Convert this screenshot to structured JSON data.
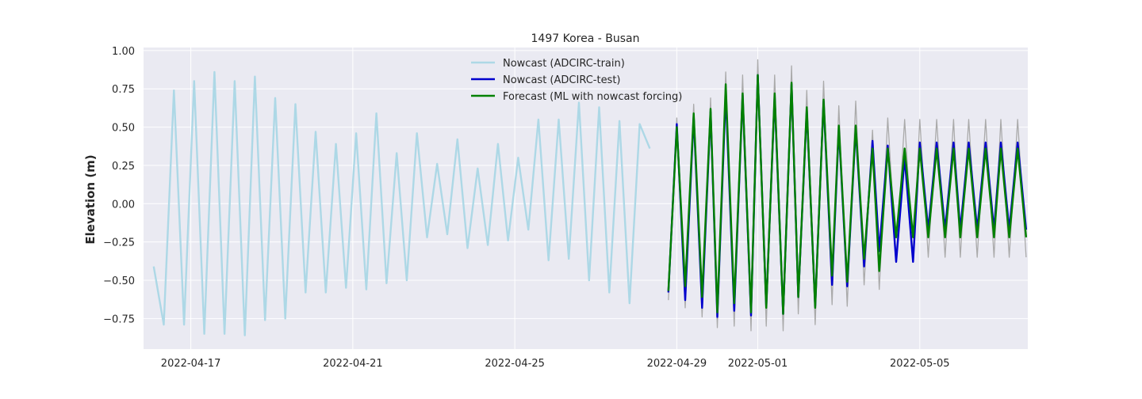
{
  "chart_data": {
    "type": "line",
    "title": "1497 Korea - Busan",
    "xlabel": "",
    "ylabel": "Elevation (m)",
    "x_ticks": [
      "2022-04-17",
      "2022-04-21",
      "2022-04-25",
      "2022-04-29",
      "2022-05-01",
      "2022-05-05"
    ],
    "y_ticks": [
      "1.00",
      "0.75",
      "0.50",
      "0.25",
      "0.00",
      "−0.25",
      "−0.50",
      "−0.75"
    ],
    "xlim": [
      "2022-04-15T20:00",
      "2022-05-07T16:00"
    ],
    "ylim": [
      -0.95,
      1.02
    ],
    "grid": true,
    "legend_position": "top-center",
    "reference_series": {
      "color": "#aaaaaa",
      "x": [
        "2022-04-28T19:00",
        "2022-04-29T00:00",
        "2022-04-29T05:00",
        "2022-04-29T10:00",
        "2022-04-29T15:00",
        "2022-04-29T20:00",
        "2022-04-30T00:00",
        "2022-04-30T05:00",
        "2022-04-30T10:00",
        "2022-04-30T15:00",
        "2022-04-30T20:00",
        "2022-05-01T00:00",
        "2022-05-01T05:00",
        "2022-05-01T10:00",
        "2022-05-01T15:00",
        "2022-05-01T20:00",
        "2022-05-02T00:00",
        "2022-05-02T05:00",
        "2022-05-02T10:00",
        "2022-05-02T15:00",
        "2022-05-02T20:00",
        "2022-05-03T00:00",
        "2022-05-03T05:00",
        "2022-05-03T10:00",
        "2022-05-03T15:00",
        "2022-05-03T20:00",
        "2022-05-04T00:00",
        "2022-05-04T05:00",
        "2022-05-04T10:00",
        "2022-05-04T15:00",
        "2022-05-04T20:00",
        "2022-05-05T00:00",
        "2022-05-05T05:00",
        "2022-05-05T10:00",
        "2022-05-05T15:00",
        "2022-05-05T20:00",
        "2022-05-06T00:00",
        "2022-05-06T05:00",
        "2022-05-06T10:00",
        "2022-05-06T15:00",
        "2022-05-06T20:00",
        "2022-05-07T00:00",
        "2022-05-07T05:00",
        "2022-05-07T10:00",
        "2022-05-07T15:00"
      ],
      "y": [
        -0.63,
        0.56,
        -0.68,
        0.65,
        -0.74,
        0.69,
        -0.81,
        0.86,
        -0.8,
        0.84,
        -0.83,
        0.94,
        -0.8,
        0.84,
        -0.83,
        0.9,
        -0.72,
        0.74,
        -0.79,
        0.8,
        -0.66,
        0.64,
        -0.67,
        0.67,
        -0.53,
        0.48,
        -0.56,
        0.56,
        -0.36,
        0.55,
        -0.36,
        0.55,
        -0.35,
        0.55,
        -0.35,
        0.55,
        -0.35,
        0.55,
        -0.35,
        0.55,
        -0.35,
        0.55,
        -0.35,
        0.55,
        -0.35
      ]
    },
    "series": [
      {
        "name": "Nowcast (ADCIRC-train)",
        "color": "#add8e6",
        "x": [
          "2022-04-16T02:00",
          "2022-04-16T08:00",
          "2022-04-16T14:00",
          "2022-04-16T20:00",
          "2022-04-17T02:00",
          "2022-04-17T08:00",
          "2022-04-17T14:00",
          "2022-04-17T20:00",
          "2022-04-18T02:00",
          "2022-04-18T08:00",
          "2022-04-18T14:00",
          "2022-04-18T20:00",
          "2022-04-19T02:00",
          "2022-04-19T08:00",
          "2022-04-19T14:00",
          "2022-04-19T20:00",
          "2022-04-20T02:00",
          "2022-04-20T08:00",
          "2022-04-20T14:00",
          "2022-04-20T20:00",
          "2022-04-21T02:00",
          "2022-04-21T08:00",
          "2022-04-21T14:00",
          "2022-04-21T20:00",
          "2022-04-22T02:00",
          "2022-04-22T08:00",
          "2022-04-22T14:00",
          "2022-04-22T20:00",
          "2022-04-23T02:00",
          "2022-04-23T08:00",
          "2022-04-23T14:00",
          "2022-04-23T20:00",
          "2022-04-24T02:00",
          "2022-04-24T08:00",
          "2022-04-24T14:00",
          "2022-04-24T20:00",
          "2022-04-25T02:00",
          "2022-04-25T08:00",
          "2022-04-25T14:00",
          "2022-04-25T20:00",
          "2022-04-26T02:00",
          "2022-04-26T08:00",
          "2022-04-26T14:00",
          "2022-04-26T20:00",
          "2022-04-27T02:00",
          "2022-04-27T08:00",
          "2022-04-27T14:00",
          "2022-04-27T20:00",
          "2022-04-28T02:00",
          "2022-04-28T08:00"
        ],
        "y": [
          -0.41,
          -0.79,
          0.74,
          -0.79,
          0.8,
          -0.85,
          0.86,
          -0.85,
          0.8,
          -0.86,
          0.83,
          -0.76,
          0.69,
          -0.75,
          0.65,
          -0.58,
          0.47,
          -0.58,
          0.39,
          -0.55,
          0.46,
          -0.56,
          0.59,
          -0.52,
          0.33,
          -0.5,
          0.46,
          -0.22,
          0.26,
          -0.2,
          0.42,
          -0.29,
          0.23,
          -0.27,
          0.39,
          -0.24,
          0.3,
          -0.17,
          0.55,
          -0.37,
          0.55,
          -0.36,
          0.66,
          -0.5,
          0.63,
          -0.58,
          0.54,
          -0.65,
          0.52,
          0.36
        ]
      },
      {
        "name": "Nowcast (ADCIRC-test)",
        "color": "#0000cd",
        "x": [
          "2022-04-28T19:00",
          "2022-04-29T00:00",
          "2022-04-29T05:00",
          "2022-04-29T10:00",
          "2022-04-29T15:00",
          "2022-04-29T20:00",
          "2022-04-30T00:00",
          "2022-04-30T05:00",
          "2022-04-30T10:00",
          "2022-04-30T15:00",
          "2022-04-30T20:00",
          "2022-05-01T00:00",
          "2022-05-01T05:00",
          "2022-05-01T10:00",
          "2022-05-01T15:00",
          "2022-05-01T20:00",
          "2022-05-02T00:00",
          "2022-05-02T05:00",
          "2022-05-02T10:00",
          "2022-05-02T15:00",
          "2022-05-02T20:00",
          "2022-05-03T00:00",
          "2022-05-03T05:00",
          "2022-05-03T10:00",
          "2022-05-03T15:00",
          "2022-05-03T20:00",
          "2022-05-04T00:00",
          "2022-05-04T05:00",
          "2022-05-04T10:00",
          "2022-05-04T15:00",
          "2022-05-04T20:00",
          "2022-05-05T00:00",
          "2022-05-05T05:00",
          "2022-05-05T10:00",
          "2022-05-05T15:00",
          "2022-05-05T20:00",
          "2022-05-06T00:00",
          "2022-05-06T05:00",
          "2022-05-06T10:00",
          "2022-05-06T15:00",
          "2022-05-06T20:00",
          "2022-05-07T00:00",
          "2022-05-07T05:00",
          "2022-05-07T10:00",
          "2022-05-07T15:00"
        ],
        "y": [
          -0.58,
          0.52,
          -0.63,
          0.57,
          -0.68,
          0.6,
          -0.74,
          0.72,
          -0.7,
          0.71,
          -0.73,
          0.84,
          -0.67,
          0.7,
          -0.72,
          0.78,
          -0.61,
          0.61,
          -0.67,
          0.67,
          -0.53,
          0.49,
          -0.54,
          0.49,
          -0.41,
          0.41,
          -0.31,
          0.38,
          -0.38,
          0.3,
          -0.38,
          0.4,
          -0.17,
          0.4,
          -0.17,
          0.4,
          -0.17,
          0.4,
          -0.17,
          0.4,
          -0.17,
          0.4,
          -0.17,
          0.4,
          -0.17
        ]
      },
      {
        "name": "Forecast (ML with nowcast forcing)",
        "color": "#008000",
        "x": [
          "2022-04-28T19:00",
          "2022-04-29T00:00",
          "2022-04-29T05:00",
          "2022-04-29T10:00",
          "2022-04-29T15:00",
          "2022-04-29T20:00",
          "2022-04-30T00:00",
          "2022-04-30T05:00",
          "2022-04-30T10:00",
          "2022-04-30T15:00",
          "2022-04-30T20:00",
          "2022-05-01T00:00",
          "2022-05-01T05:00",
          "2022-05-01T10:00",
          "2022-05-01T15:00",
          "2022-05-01T20:00",
          "2022-05-02T00:00",
          "2022-05-02T05:00",
          "2022-05-02T10:00",
          "2022-05-02T15:00",
          "2022-05-02T20:00",
          "2022-05-03T00:00",
          "2022-05-03T05:00",
          "2022-05-03T10:00",
          "2022-05-03T15:00",
          "2022-05-03T20:00",
          "2022-05-04T00:00",
          "2022-05-04T05:00",
          "2022-05-04T10:00",
          "2022-05-04T15:00",
          "2022-05-04T20:00",
          "2022-05-05T00:00",
          "2022-05-05T05:00",
          "2022-05-05T10:00",
          "2022-05-05T15:00",
          "2022-05-05T20:00",
          "2022-05-06T00:00",
          "2022-05-06T05:00",
          "2022-05-06T10:00",
          "2022-05-06T15:00",
          "2022-05-06T20:00",
          "2022-05-07T00:00",
          "2022-05-07T05:00",
          "2022-05-07T10:00",
          "2022-05-07T15:00"
        ],
        "y": [
          -0.57,
          0.5,
          -0.54,
          0.59,
          -0.61,
          0.62,
          -0.71,
          0.78,
          -0.65,
          0.72,
          -0.71,
          0.84,
          -0.68,
          0.72,
          -0.72,
          0.79,
          -0.61,
          0.63,
          -0.68,
          0.68,
          -0.47,
          0.51,
          -0.51,
          0.51,
          -0.36,
          0.36,
          -0.44,
          0.36,
          -0.22,
          0.36,
          -0.22,
          0.36,
          -0.22,
          0.36,
          -0.22,
          0.36,
          -0.22,
          0.36,
          -0.22,
          0.36,
          -0.22,
          0.36,
          -0.22,
          0.36,
          -0.22
        ]
      }
    ]
  }
}
